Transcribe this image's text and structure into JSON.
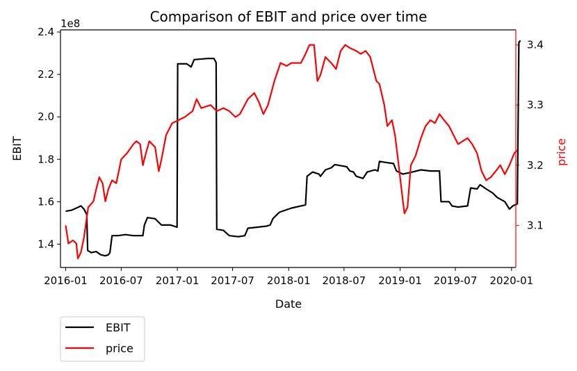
{
  "chart_data": {
    "type": "line",
    "title": "Comparison of EBIT and price over time",
    "xlabel": "Date",
    "x_ticks": [
      "2016-01",
      "2016-07",
      "2017-01",
      "2017-07",
      "2018-01",
      "2018-07",
      "2019-01",
      "2019-07",
      "2020-01"
    ],
    "xlim": [
      "2015-12-15",
      "2020-01-15"
    ],
    "left_axis": {
      "label": "EBIT",
      "offset_text": "1e8",
      "ticks": [
        "1.4",
        "1.6",
        "1.8",
        "2.0",
        "2.2",
        "2.4"
      ],
      "ylim": [
        1.29,
        2.41
      ],
      "color": "#000000"
    },
    "right_axis": {
      "label": "price",
      "ticks": [
        "3.1",
        "3.2",
        "3.3",
        "3.4"
      ],
      "ylim": [
        3.03,
        3.425
      ],
      "color": "#ff0000"
    },
    "series": [
      {
        "name": "EBIT",
        "axis": "left",
        "color": "#000000",
        "points": [
          [
            "2016-01-01",
            1.555
          ],
          [
            "2016-01-20",
            1.56
          ],
          [
            "2016-02-05",
            1.57
          ],
          [
            "2016-02-20",
            1.58
          ],
          [
            "2016-03-01",
            1.565
          ],
          [
            "2016-03-10",
            1.54
          ],
          [
            "2016-03-13",
            1.37
          ],
          [
            "2016-03-25",
            1.36
          ],
          [
            "2016-04-10",
            1.365
          ],
          [
            "2016-04-25",
            1.35
          ],
          [
            "2016-05-10",
            1.345
          ],
          [
            "2016-05-20",
            1.35
          ],
          [
            "2016-05-25",
            1.36
          ],
          [
            "2016-06-01",
            1.44
          ],
          [
            "2016-06-20",
            1.44
          ],
          [
            "2016-07-15",
            1.445
          ],
          [
            "2016-08-10",
            1.44
          ],
          [
            "2016-09-10",
            1.44
          ],
          [
            "2016-09-15",
            1.49
          ],
          [
            "2016-09-25",
            1.525
          ],
          [
            "2016-10-20",
            1.52
          ],
          [
            "2016-11-10",
            1.49
          ],
          [
            "2016-12-10",
            1.49
          ],
          [
            "2016-12-31",
            1.48
          ],
          [
            "2017-01-02",
            2.25
          ],
          [
            "2017-02-01",
            2.25
          ],
          [
            "2017-02-15",
            2.235
          ],
          [
            "2017-02-25",
            2.27
          ],
          [
            "2017-04-10",
            2.275
          ],
          [
            "2017-05-01",
            2.275
          ],
          [
            "2017-05-08",
            2.255
          ],
          [
            "2017-05-10",
            1.47
          ],
          [
            "2017-06-01",
            1.465
          ],
          [
            "2017-06-20",
            1.44
          ],
          [
            "2017-07-20",
            1.435
          ],
          [
            "2017-08-10",
            1.44
          ],
          [
            "2017-08-20",
            1.475
          ],
          [
            "2017-09-20",
            1.48
          ],
          [
            "2017-10-20",
            1.485
          ],
          [
            "2017-11-01",
            1.49
          ],
          [
            "2017-11-10",
            1.52
          ],
          [
            "2017-12-01",
            1.55
          ],
          [
            "2017-12-20",
            1.56
          ],
          [
            "2018-01-10",
            1.57
          ],
          [
            "2018-02-10",
            1.58
          ],
          [
            "2018-02-25",
            1.585
          ],
          [
            "2018-03-02",
            1.72
          ],
          [
            "2018-03-20",
            1.74
          ],
          [
            "2018-04-10",
            1.73
          ],
          [
            "2018-04-15",
            1.72
          ],
          [
            "2018-05-01",
            1.75
          ],
          [
            "2018-05-20",
            1.76
          ],
          [
            "2018-06-01",
            1.775
          ],
          [
            "2018-06-20",
            1.77
          ],
          [
            "2018-07-10",
            1.765
          ],
          [
            "2018-07-20",
            1.745
          ],
          [
            "2018-08-01",
            1.74
          ],
          [
            "2018-08-10",
            1.72
          ],
          [
            "2018-09-01",
            1.71
          ],
          [
            "2018-09-15",
            1.74
          ],
          [
            "2018-10-10",
            1.75
          ],
          [
            "2018-10-20",
            1.745
          ],
          [
            "2018-10-25",
            1.79
          ],
          [
            "2018-11-15",
            1.785
          ],
          [
            "2018-12-10",
            1.78
          ],
          [
            "2018-12-20",
            1.745
          ],
          [
            "2019-01-10",
            1.73
          ],
          [
            "2019-02-10",
            1.74
          ],
          [
            "2019-03-10",
            1.75
          ],
          [
            "2019-04-10",
            1.745
          ],
          [
            "2019-05-10",
            1.745
          ],
          [
            "2019-05-15",
            1.6
          ],
          [
            "2019-06-10",
            1.6
          ],
          [
            "2019-06-20",
            1.58
          ],
          [
            "2019-07-10",
            1.575
          ],
          [
            "2019-08-10",
            1.58
          ],
          [
            "2019-08-20",
            1.665
          ],
          [
            "2019-09-10",
            1.66
          ],
          [
            "2019-09-20",
            1.68
          ],
          [
            "2019-10-10",
            1.66
          ],
          [
            "2019-11-01",
            1.64
          ],
          [
            "2019-11-15",
            1.62
          ],
          [
            "2019-12-10",
            1.6
          ],
          [
            "2019-12-25",
            1.565
          ],
          [
            "2020-01-05",
            1.58
          ],
          [
            "2020-01-20",
            1.59
          ],
          [
            "2020-01-25",
            2.35
          ],
          [
            "2020-01-30",
            2.36
          ]
        ]
      },
      {
        "name": "price",
        "axis": "right",
        "color": "#ff0000",
        "points": [
          [
            "2016-01-01",
            3.1
          ],
          [
            "2016-01-10",
            3.07
          ],
          [
            "2016-01-25",
            3.075
          ],
          [
            "2016-02-05",
            3.07
          ],
          [
            "2016-02-10",
            3.045
          ],
          [
            "2016-02-20",
            3.055
          ],
          [
            "2016-03-01",
            3.08
          ],
          [
            "2016-03-15",
            3.13
          ],
          [
            "2016-04-01",
            3.14
          ],
          [
            "2016-04-10",
            3.16
          ],
          [
            "2016-04-20",
            3.18
          ],
          [
            "2016-05-01",
            3.17
          ],
          [
            "2016-05-10",
            3.14
          ],
          [
            "2016-05-20",
            3.16
          ],
          [
            "2016-06-01",
            3.175
          ],
          [
            "2016-06-15",
            3.17
          ],
          [
            "2016-07-01",
            3.21
          ],
          [
            "2016-07-20",
            3.22
          ],
          [
            "2016-08-10",
            3.235
          ],
          [
            "2016-08-20",
            3.24
          ],
          [
            "2016-09-01",
            3.235
          ],
          [
            "2016-09-10",
            3.2
          ],
          [
            "2016-09-20",
            3.22
          ],
          [
            "2016-10-01",
            3.24
          ],
          [
            "2016-10-20",
            3.23
          ],
          [
            "2016-11-01",
            3.19
          ],
          [
            "2016-11-10",
            3.21
          ],
          [
            "2016-11-25",
            3.25
          ],
          [
            "2016-12-15",
            3.27
          ],
          [
            "2017-01-05",
            3.275
          ],
          [
            "2017-01-25",
            3.28
          ],
          [
            "2017-02-20",
            3.29
          ],
          [
            "2017-03-05",
            3.31
          ],
          [
            "2017-03-20",
            3.295
          ],
          [
            "2017-04-20",
            3.3
          ],
          [
            "2017-05-10",
            3.29
          ],
          [
            "2017-06-01",
            3.295
          ],
          [
            "2017-06-20",
            3.29
          ],
          [
            "2017-07-10",
            3.28
          ],
          [
            "2017-07-25",
            3.285
          ],
          [
            "2017-08-20",
            3.31
          ],
          [
            "2017-09-10",
            3.32
          ],
          [
            "2017-09-25",
            3.305
          ],
          [
            "2017-10-10",
            3.285
          ],
          [
            "2017-10-25",
            3.3
          ],
          [
            "2017-11-15",
            3.34
          ],
          [
            "2017-12-05",
            3.37
          ],
          [
            "2017-12-25",
            3.365
          ],
          [
            "2018-01-10",
            3.37
          ],
          [
            "2018-02-10",
            3.37
          ],
          [
            "2018-02-25",
            3.385
          ],
          [
            "2018-03-10",
            3.4
          ],
          [
            "2018-03-25",
            3.4
          ],
          [
            "2018-04-05",
            3.34
          ],
          [
            "2018-04-15",
            3.35
          ],
          [
            "2018-05-01",
            3.38
          ],
          [
            "2018-05-20",
            3.37
          ],
          [
            "2018-06-05",
            3.36
          ],
          [
            "2018-06-20",
            3.39
          ],
          [
            "2018-07-05",
            3.4
          ],
          [
            "2018-07-20",
            3.395
          ],
          [
            "2018-08-10",
            3.39
          ],
          [
            "2018-08-25",
            3.385
          ],
          [
            "2018-09-10",
            3.39
          ],
          [
            "2018-09-25",
            3.38
          ],
          [
            "2018-10-05",
            3.36
          ],
          [
            "2018-10-15",
            3.34
          ],
          [
            "2018-10-25",
            3.335
          ],
          [
            "2018-11-10",
            3.3
          ],
          [
            "2018-11-20",
            3.265
          ],
          [
            "2018-12-05",
            3.275
          ],
          [
            "2018-12-15",
            3.25
          ],
          [
            "2018-12-25",
            3.21
          ],
          [
            "2019-01-10",
            3.14
          ],
          [
            "2019-01-15",
            3.12
          ],
          [
            "2019-01-25",
            3.13
          ],
          [
            "2019-02-05",
            3.2
          ],
          [
            "2019-02-20",
            3.215
          ],
          [
            "2019-03-10",
            3.245
          ],
          [
            "2019-03-25",
            3.265
          ],
          [
            "2019-04-10",
            3.275
          ],
          [
            "2019-04-25",
            3.27
          ],
          [
            "2019-05-10",
            3.285
          ],
          [
            "2019-05-25",
            3.275
          ],
          [
            "2019-06-10",
            3.265
          ],
          [
            "2019-06-25",
            3.25
          ],
          [
            "2019-07-10",
            3.235
          ],
          [
            "2019-07-25",
            3.24
          ],
          [
            "2019-08-10",
            3.245
          ],
          [
            "2019-08-25",
            3.235
          ],
          [
            "2019-09-10",
            3.22
          ],
          [
            "2019-09-25",
            3.19
          ],
          [
            "2019-10-10",
            3.175
          ],
          [
            "2019-10-25",
            3.18
          ],
          [
            "2019-11-10",
            3.19
          ],
          [
            "2019-11-25",
            3.2
          ],
          [
            "2019-12-10",
            3.185
          ],
          [
            "2019-12-25",
            3.2
          ],
          [
            "2020-01-10",
            3.22
          ],
          [
            "2020-01-20",
            3.225
          ]
        ]
      }
    ],
    "legend": {
      "position": "below-left",
      "entries": [
        "EBIT",
        "price"
      ]
    }
  }
}
